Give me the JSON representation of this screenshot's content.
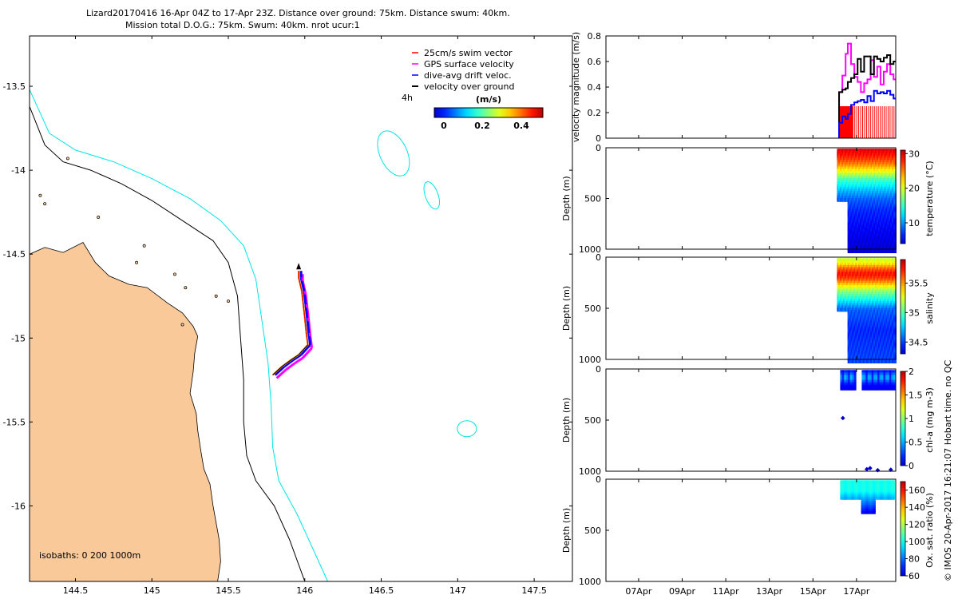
{
  "header": {
    "line1": "Lizard20170416 16-Apr 04Z to 17-Apr 23Z. Distance over ground: 75km. Distance swum: 40km.",
    "line2": "Mission total D.O.G.: 75km. Swum: 40km. nrot ucur:1"
  },
  "credit": "© IMOS 20-Apr-2017 16:21:07 Hobart time. no QC",
  "map": {
    "isobaths_label": "isobaths: 0   200  1000m",
    "time_step_label": "4h",
    "legend": [
      {
        "label": "25cm/s swim vector",
        "color": "#ff0000"
      },
      {
        "label": "GPS surface velocity",
        "color": "#ff00ff"
      },
      {
        "label": "dive-avg drift veloc.",
        "color": "#0000ff"
      },
      {
        "label": "velocity over ground",
        "color": "#000000"
      }
    ],
    "colorbar": {
      "unit": "(m/s)",
      "ticks": [
        "0",
        "0.2",
        "0.4"
      ],
      "range": [
        0,
        0.5
      ]
    },
    "land_color": "#f9c99a",
    "shelf_200m_color": "#000000",
    "isobath_1000m_color": "#00e5e5"
  },
  "chart_data": [
    {
      "type": "scatter",
      "id": "track-map",
      "xlim": [
        144.2,
        147.75
      ],
      "ylim": [
        -16.45,
        -13.2
      ],
      "x_ticks": [
        "144.5",
        "145",
        "145.5",
        "146",
        "146.5",
        "147",
        "147.5"
      ],
      "x_tick_values": [
        144.5,
        145,
        145.5,
        146,
        146.5,
        147,
        147.5
      ],
      "y_ticks": [
        "-13.5",
        "-14",
        "-14.5",
        "-15",
        "-15.5",
        "-16"
      ],
      "y_tick_values": [
        -13.5,
        -14,
        -14.5,
        -15,
        -15.5,
        -16
      ],
      "track": [
        [
          145.79,
          -15.22
        ],
        [
          145.85,
          -15.17
        ],
        [
          145.91,
          -15.13
        ],
        [
          145.96,
          -15.1
        ],
        [
          146.02,
          -15.04
        ],
        [
          146.01,
          -14.97
        ],
        [
          146.0,
          -14.88
        ],
        [
          145.99,
          -14.8
        ],
        [
          145.98,
          -14.72
        ],
        [
          145.96,
          -14.64
        ],
        [
          145.96,
          -14.6
        ]
      ]
    },
    {
      "type": "line",
      "id": "velocity-magnitude",
      "ylabel": "velocity magnitude (m/s)",
      "ylim": [
        0,
        0.8
      ],
      "y_ticks": [
        "0",
        "0.2",
        "0.4",
        "0.6",
        "0.8"
      ],
      "y_tick_values": [
        0,
        0.2,
        0.4,
        0.6,
        0.8
      ],
      "x_days_lim": [
        5.5,
        18.8
      ],
      "x_ticks": [
        "07Apr",
        "09Apr",
        "11Apr",
        "13Apr",
        "15Apr",
        "17Apr"
      ],
      "x_tick_days": [
        7,
        9,
        11,
        13,
        15,
        17
      ],
      "series": [
        {
          "name": "GPS surface velocity",
          "color": "#ff00ff",
          "x": [
            16.2,
            16.35,
            16.5,
            16.6,
            16.75,
            16.9,
            17.05,
            17.2,
            17.35,
            17.5,
            17.65,
            17.8,
            17.95,
            18.1,
            18.25,
            18.4,
            18.55,
            18.7
          ],
          "y": [
            0.36,
            0.49,
            0.66,
            0.74,
            0.58,
            0.48,
            0.44,
            0.36,
            0.43,
            0.46,
            0.61,
            0.48,
            0.56,
            0.42,
            0.52,
            0.58,
            0.5,
            0.46
          ]
        },
        {
          "name": "velocity over ground",
          "color": "#000000",
          "x": [
            16.2,
            16.35,
            16.5,
            16.6,
            16.75,
            16.9,
            17.05,
            17.2,
            17.35,
            17.5,
            17.65,
            17.8,
            17.95,
            18.1,
            18.25,
            18.4,
            18.55,
            18.7
          ],
          "y": [
            0.36,
            0.38,
            0.39,
            0.44,
            0.47,
            0.5,
            0.62,
            0.52,
            0.64,
            0.64,
            0.5,
            0.64,
            0.62,
            0.6,
            0.63,
            0.65,
            0.58,
            0.6
          ]
        },
        {
          "name": "dive-avg drift veloc.",
          "color": "#0000ff",
          "x": [
            16.2,
            16.35,
            16.5,
            16.6,
            16.75,
            16.9,
            17.05,
            17.2,
            17.35,
            17.5,
            17.65,
            17.8,
            17.95,
            18.1,
            18.25,
            18.4,
            18.55,
            18.7
          ],
          "y": [
            0.12,
            0.17,
            0.15,
            0.19,
            0.26,
            0.28,
            0.29,
            0.3,
            0.28,
            0.33,
            0.29,
            0.37,
            0.35,
            0.36,
            0.35,
            0.37,
            0.34,
            0.31
          ]
        },
        {
          "name": "25cm/s swim vector",
          "color": "#ff0000",
          "x": [
            16.2,
            18.7
          ],
          "y": [
            0.25,
            0.25
          ]
        }
      ]
    },
    {
      "type": "heatmap",
      "id": "temperature-section",
      "ylabel": "Depth (m)",
      "ylim": [
        1000,
        0
      ],
      "y_ticks": [
        "0",
        "500",
        "1000"
      ],
      "y_tick_values": [
        0,
        500,
        1000
      ],
      "colorbar_label": "temperature (°C)",
      "colorbar_range": [
        4,
        31
      ],
      "colorbar_ticks": [
        "30",
        "20",
        "10"
      ],
      "colorbar_tick_values": [
        30,
        20,
        10
      ],
      "profile": [
        [
          0,
          29.5
        ],
        [
          50,
          28.5
        ],
        [
          100,
          27
        ],
        [
          150,
          25
        ],
        [
          200,
          22
        ],
        [
          250,
          19
        ],
        [
          300,
          16
        ],
        [
          400,
          12
        ],
        [
          500,
          9
        ],
        [
          600,
          7.5
        ],
        [
          800,
          6
        ],
        [
          1000,
          5
        ]
      ]
    },
    {
      "type": "heatmap",
      "id": "salinity-section",
      "ylabel": "Depth (m)",
      "ylim": [
        1000,
        0
      ],
      "y_ticks": [
        "0",
        "500",
        "1000"
      ],
      "y_tick_values": [
        0,
        500,
        1000
      ],
      "colorbar_label": "salinity",
      "colorbar_range": [
        34.3,
        35.9
      ],
      "colorbar_ticks": [
        "35.5",
        "35",
        "34.5"
      ],
      "colorbar_tick_values": [
        35.5,
        35,
        34.5
      ],
      "profile": [
        [
          0,
          35.2
        ],
        [
          50,
          35.35
        ],
        [
          100,
          35.6
        ],
        [
          150,
          35.75
        ],
        [
          200,
          35.65
        ],
        [
          300,
          35.2
        ],
        [
          400,
          34.9
        ],
        [
          500,
          34.6
        ],
        [
          700,
          34.5
        ],
        [
          1000,
          34.55
        ]
      ]
    },
    {
      "type": "scatter",
      "id": "chlorophyll-section",
      "ylabel": "Depth (m)",
      "ylim": [
        1000,
        0
      ],
      "y_ticks": [
        "0",
        "500",
        "1000"
      ],
      "y_tick_values": [
        0,
        500,
        1000
      ],
      "colorbar_label": "chl-a (mg m-3)",
      "colorbar_range": [
        0,
        2
      ],
      "colorbar_ticks": [
        "2",
        "1.5",
        "1",
        "0.5",
        "0"
      ],
      "colorbar_tick_values": [
        2,
        1.5,
        1,
        0.5,
        0
      ],
      "outliers": [
        [
          16.3,
          480,
          0.05
        ],
        [
          17.4,
          980,
          0.05
        ],
        [
          17.55,
          970,
          0.05
        ],
        [
          17.9,
          990,
          0.05
        ],
        [
          18.5,
          985,
          0.05
        ]
      ]
    },
    {
      "type": "scatter",
      "id": "oxygen-section",
      "ylabel": "Depth (m)",
      "ylim": [
        1000,
        0
      ],
      "y_ticks": [
        "0",
        "500",
        "1000"
      ],
      "y_tick_values": [
        0,
        500,
        1000
      ],
      "colorbar_label": "Ox. sat. ratio (%)",
      "colorbar_range": [
        60,
        170
      ],
      "colorbar_ticks": [
        "160",
        "140",
        "120",
        "100",
        "80",
        "60"
      ],
      "colorbar_tick_values": [
        160,
        140,
        120,
        100,
        80,
        60
      ]
    }
  ]
}
